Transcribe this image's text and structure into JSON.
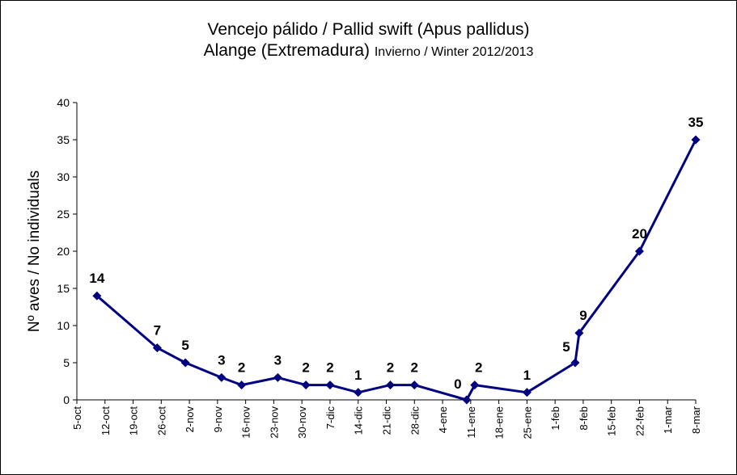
{
  "chart_data": {
    "type": "line",
    "title_line1": "Vencejo pálido / Pallid swift (Apus pallidus)",
    "title_line2_main": "Alange (Extremadura)",
    "title_line2_small": "Invierno / Winter 2012/2013",
    "ylabel": "Nº aves / No individuals",
    "xlabel": "",
    "ylim": [
      0,
      40
    ],
    "yticks": [
      0,
      5,
      10,
      15,
      20,
      25,
      30,
      35,
      40
    ],
    "x_tick_labels": [
      "5-oct",
      "12-oct",
      "19-oct",
      "26-oct",
      "2-nov",
      "9-nov",
      "16-nov",
      "23-nov",
      "30-nov",
      "7-dic",
      "14-dic",
      "21-dic",
      "28-dic",
      "4-ene",
      "11-ene",
      "18-ene",
      "25-ene",
      "1-feb",
      "8-feb",
      "15-feb",
      "22-feb",
      "1-mar",
      "8-mar"
    ],
    "x_start": "2012-10-05",
    "series": [
      {
        "color": "#000080",
        "points": [
          {
            "x": "2012-10-10",
            "y": 14
          },
          {
            "x": "2012-10-25",
            "y": 7
          },
          {
            "x": "2012-11-01",
            "y": 5
          },
          {
            "x": "2012-11-10",
            "y": 3
          },
          {
            "x": "2012-11-15",
            "y": 2
          },
          {
            "x": "2012-11-24",
            "y": 3
          },
          {
            "x": "2012-12-01",
            "y": 2
          },
          {
            "x": "2012-12-07",
            "y": 2
          },
          {
            "x": "2012-12-14",
            "y": 1
          },
          {
            "x": "2012-12-22",
            "y": 2
          },
          {
            "x": "2012-12-28",
            "y": 2
          },
          {
            "x": "2013-01-10",
            "y": 0
          },
          {
            "x": "2013-01-12",
            "y": 2
          },
          {
            "x": "2013-01-25",
            "y": 1
          },
          {
            "x": "2013-02-06",
            "y": 5
          },
          {
            "x": "2013-02-07",
            "y": 9
          },
          {
            "x": "2013-02-22",
            "y": 20
          },
          {
            "x": "2013-03-08",
            "y": 35
          }
        ]
      }
    ],
    "grid": false,
    "legend": "none"
  }
}
